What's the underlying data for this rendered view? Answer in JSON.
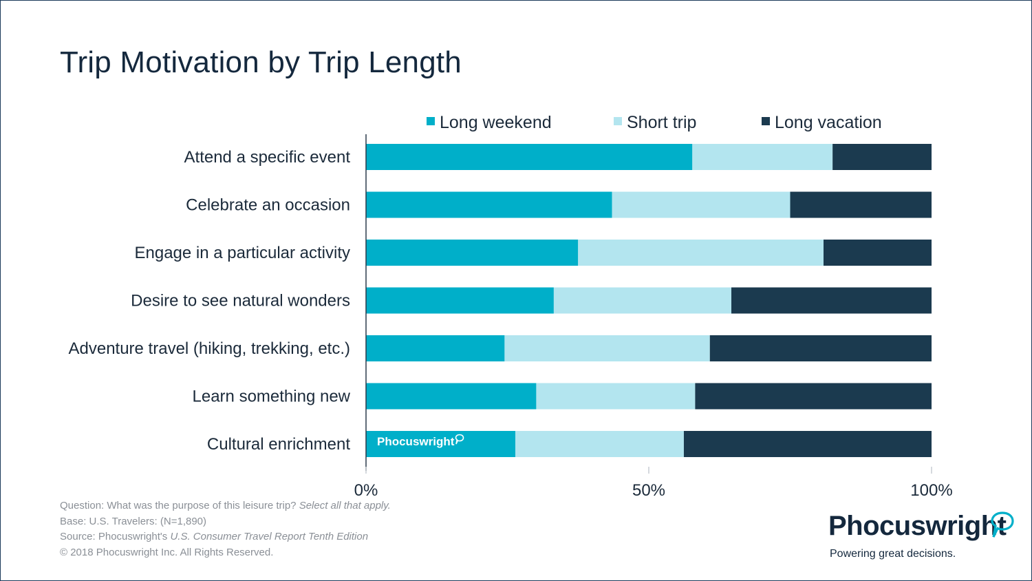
{
  "chart_data": {
    "type": "bar",
    "orientation": "horizontal",
    "stacked": true,
    "title": "Trip Motivation by Trip Length",
    "categories": [
      "Attend a specific event",
      "Celebrate an occasion",
      "Engage in a particular activity",
      "Desire to see natural wonders",
      "Adventure travel (hiking, trekking, etc.)",
      "Learn something new",
      "Cultural enrichment"
    ],
    "series": [
      {
        "name": "Long weekend",
        "color": "#00afc9",
        "values": [
          57.7,
          43.5,
          37.5,
          33.2,
          24.5,
          30.1,
          26.4
        ]
      },
      {
        "name": "Short trip",
        "color": "#b3e5ef",
        "values": [
          24.8,
          31.5,
          43.4,
          31.4,
          36.3,
          28.1,
          29.8
        ]
      },
      {
        "name": "Long vacation",
        "color": "#1b3a4f",
        "values": [
          17.5,
          25.0,
          19.1,
          35.4,
          39.2,
          41.8,
          43.8
        ]
      }
    ],
    "xlim": [
      0,
      100
    ],
    "x_ticks": [
      "0%",
      "50%",
      "100%"
    ],
    "legend_position": "top",
    "grid": false
  },
  "watermark": "Phocuswright",
  "footnotes": {
    "question_prefix": "Question: What was the purpose of this leisure trip? ",
    "question_italic": "Select all that apply.",
    "base": "Base: U.S. Travelers: (N=1,890)",
    "source_prefix": "Source: Phocuswright's ",
    "source_italic": "U.S. Consumer Travel Report Tenth Edition",
    "copyright": "© 2018 Phocuswright Inc. All Rights Reserved."
  },
  "logo": {
    "name": "Phocuswright",
    "tagline": "Powering great decisions."
  }
}
